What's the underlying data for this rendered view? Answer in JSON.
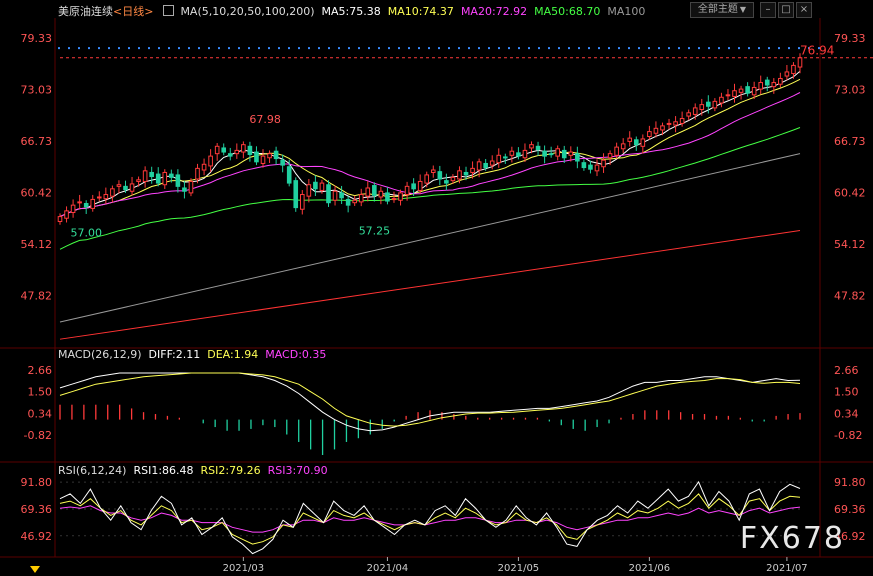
{
  "header": {
    "title": "美原油连续",
    "period": "<日线>",
    "ma_legend": [
      {
        "text": "MA(5,10,20,50,100,200)",
        "color": "#dddddd"
      },
      {
        "text": "MA5:75.38",
        "color": "#ffffff"
      },
      {
        "text": "MA10:74.37",
        "color": "#ffff55"
      },
      {
        "text": "MA20:72.92",
        "color": "#ff44ff"
      },
      {
        "text": "MA50:68.70",
        "color": "#44ff44"
      },
      {
        "text": "MA100",
        "color": "#999999"
      }
    ],
    "theme_button": "全部主题",
    "theme_caret": "▼"
  },
  "colors": {
    "up": "#ff3a3a",
    "down": "#20d0a0",
    "ma5": "#ffffff",
    "ma10": "#ffff55",
    "ma20": "#ff44ff",
    "ma50": "#44ff44",
    "ma100": "#999999",
    "ma200": "#ff3333",
    "grid": "#3a0000",
    "price_tag": "#ff3a3a"
  },
  "watermark": "FX678",
  "chart_data": [
    {
      "type": "candlestick",
      "title": "美原油连续",
      "y_ticks": [
        79.33,
        73.03,
        66.73,
        60.42,
        54.12,
        47.82
      ],
      "ylim": [
        42.4,
        81.8
      ],
      "x_ticks": [
        {
          "label": "2021/03",
          "index": 28
        },
        {
          "label": "2021/04",
          "index": 50
        },
        {
          "label": "2021/05",
          "index": 70
        },
        {
          "label": "2021/06",
          "index": 90
        },
        {
          "label": "2021/07",
          "index": 111
        }
      ],
      "last_price": 76.94,
      "annotations": [
        {
          "text": "67.98",
          "index": 28,
          "value": 67.98,
          "kind": "high"
        },
        {
          "text": "57.00",
          "index": 1,
          "value": 57.0,
          "kind": "low"
        },
        {
          "text": "57.25",
          "index": 45,
          "value": 57.25,
          "kind": "low"
        }
      ],
      "closes": [
        57.5,
        58.2,
        58.9,
        59.3,
        58.7,
        59.6,
        59.9,
        60.2,
        60.9,
        61.4,
        60.8,
        61.5,
        62.0,
        63.1,
        62.4,
        61.6,
        62.9,
        62.3,
        61.2,
        60.6,
        61.8,
        63.4,
        63.9,
        64.9,
        66.1,
        65.4,
        64.9,
        65.6,
        66.3,
        65.1,
        64.2,
        64.9,
        65.2,
        64.6,
        63.8,
        61.6,
        58.6,
        60.2,
        61.4,
        60.9,
        61.6,
        59.2,
        60.6,
        59.8,
        58.9,
        59.5,
        60.2,
        61.0,
        60.1,
        60.6,
        59.4,
        59.7,
        60.4,
        61.2,
        60.9,
        61.8,
        62.6,
        63.2,
        62.1,
        61.6,
        62.3,
        63.1,
        62.6,
        63.4,
        64.2,
        63.5,
        64.3,
        65.0,
        64.7,
        65.5,
        64.9,
        65.6,
        66.3,
        65.7,
        64.9,
        65.1,
        65.8,
        64.7,
        65.4,
        64.3,
        63.5,
        63.3,
        63.8,
        64.4,
        65.2,
        66.0,
        66.4,
        67.1,
        66.3,
        67.0,
        67.9,
        68.3,
        68.6,
        68.9,
        69.1,
        69.5,
        70.2,
        70.8,
        71.2,
        71.0,
        71.6,
        72.1,
        72.4,
        72.9,
        73.1,
        72.6,
        73.3,
        73.9,
        73.6,
        73.9,
        74.4,
        75.2,
        76.0,
        76.94
      ],
      "series": [
        {
          "name": "MA5",
          "color": "#ffffff",
          "last": 75.38
        },
        {
          "name": "MA10",
          "color": "#ffff55",
          "last": 74.37
        },
        {
          "name": "MA20",
          "color": "#ff44ff",
          "last": 72.92
        },
        {
          "name": "MA50",
          "color": "#44ff44",
          "last": 68.7
        },
        {
          "name": "MA100",
          "color": "#999999",
          "start": 44.6,
          "end": 65.2
        },
        {
          "name": "MA200",
          "color": "#ff3333",
          "start": 42.5,
          "end": 55.8
        }
      ]
    },
    {
      "type": "line+bar",
      "title": "MACD(26,12,9)",
      "legend": [
        {
          "text": "MACD(26,12,9)",
          "color": "#dddddd"
        },
        {
          "text": "DIFF:2.11",
          "color": "#ffffff"
        },
        {
          "text": "DEA:1.94",
          "color": "#ffff55"
        },
        {
          "text": "MACD:0.35",
          "color": "#ff44ff"
        }
      ],
      "y_ticks": [
        2.66,
        1.5,
        0.34,
        -0.82
      ],
      "ylim": [
        -1.9,
        3.2
      ],
      "diff": [
        1.7,
        1.9,
        2.1,
        2.3,
        2.4,
        2.5,
        2.5,
        2.5,
        2.5,
        2.5,
        2.5,
        2.5,
        2.5,
        2.5,
        2.5,
        2.5,
        2.4,
        2.3,
        2.1,
        1.8,
        1.4,
        0.9,
        0.4,
        0.0,
        -0.3,
        -0.5,
        -0.6,
        -0.55,
        -0.4,
        -0.2,
        0.0,
        0.2,
        0.3,
        0.4,
        0.4,
        0.4,
        0.4,
        0.45,
        0.5,
        0.55,
        0.6,
        0.6,
        0.7,
        0.8,
        0.9,
        1.0,
        1.2,
        1.5,
        1.8,
        2.0,
        2.0,
        2.1,
        2.1,
        2.2,
        2.3,
        2.3,
        2.2,
        2.1,
        2.0,
        2.1,
        2.2,
        2.1,
        2.11
      ],
      "dea": [
        1.3,
        1.5,
        1.7,
        1.9,
        2.0,
        2.1,
        2.2,
        2.3,
        2.35,
        2.4,
        2.45,
        2.5,
        2.5,
        2.5,
        2.5,
        2.5,
        2.45,
        2.4,
        2.3,
        2.1,
        1.9,
        1.5,
        1.1,
        0.6,
        0.2,
        0.0,
        -0.2,
        -0.3,
        -0.35,
        -0.3,
        -0.2,
        -0.05,
        0.1,
        0.2,
        0.3,
        0.35,
        0.35,
        0.38,
        0.4,
        0.45,
        0.5,
        0.55,
        0.6,
        0.7,
        0.8,
        0.9,
        1.0,
        1.2,
        1.4,
        1.6,
        1.8,
        1.9,
        2.0,
        2.05,
        2.1,
        2.2,
        2.2,
        2.15,
        2.0,
        1.95,
        2.0,
        2.0,
        1.94
      ],
      "macd": [
        0.8,
        0.8,
        0.8,
        0.8,
        0.8,
        0.8,
        0.6,
        0.4,
        0.3,
        0.2,
        0.1,
        0.0,
        -0.2,
        -0.4,
        -0.6,
        -0.6,
        -0.5,
        -0.3,
        -0.4,
        -0.8,
        -1.2,
        -1.6,
        -1.9,
        -1.6,
        -1.2,
        -1.0,
        -0.8,
        -0.5,
        -0.1,
        0.2,
        0.4,
        0.5,
        0.4,
        0.3,
        0.2,
        0.1,
        0.1,
        0.1,
        0.1,
        0.1,
        0.1,
        -0.1,
        -0.3,
        -0.5,
        -0.6,
        -0.4,
        -0.2,
        0.1,
        0.3,
        0.5,
        0.5,
        0.5,
        0.4,
        0.3,
        0.3,
        0.2,
        0.2,
        0.1,
        -0.1,
        -0.1,
        0.2,
        0.3,
        0.35
      ]
    },
    {
      "type": "line",
      "title": "RSI(6,12,24)",
      "legend": [
        {
          "text": "RSI(6,12,24)",
          "color": "#dddddd"
        },
        {
          "text": "RSI1:86.48",
          "color": "#ffffff"
        },
        {
          "text": "RSI2:79.26",
          "color": "#ffff55"
        },
        {
          "text": "RSI3:70.90",
          "color": "#ff44ff"
        }
      ],
      "y_ticks": [
        91.8,
        69.36,
        46.92
      ],
      "ylim": [
        30,
        102
      ],
      "rsi1": [
        78,
        82,
        74,
        86,
        70,
        60,
        72,
        58,
        52,
        68,
        80,
        74,
        56,
        62,
        48,
        54,
        62,
        46,
        40,
        32,
        36,
        44,
        60,
        54,
        74,
        66,
        58,
        76,
        68,
        64,
        72,
        60,
        54,
        48,
        56,
        60,
        56,
        68,
        72,
        64,
        78,
        70,
        60,
        54,
        60,
        72,
        62,
        56,
        66,
        54,
        40,
        38,
        52,
        60,
        64,
        72,
        66,
        76,
        70,
        78,
        86,
        76,
        80,
        92,
        72,
        84,
        76,
        60,
        82,
        86,
        68,
        84,
        90,
        86.48
      ],
      "rsi2": [
        74,
        76,
        72,
        78,
        70,
        64,
        68,
        60,
        56,
        64,
        72,
        68,
        58,
        60,
        52,
        54,
        58,
        48,
        44,
        40,
        42,
        46,
        56,
        54,
        66,
        62,
        58,
        68,
        64,
        62,
        66,
        60,
        56,
        52,
        56,
        58,
        56,
        62,
        66,
        62,
        70,
        66,
        60,
        56,
        58,
        66,
        60,
        58,
        62,
        56,
        46,
        44,
        52,
        56,
        60,
        66,
        62,
        68,
        66,
        70,
        76,
        70,
        74,
        82,
        70,
        78,
        72,
        64,
        76,
        78,
        68,
        76,
        80,
        79.26
      ],
      "rsi3": [
        70,
        71,
        70,
        72,
        68,
        66,
        66,
        62,
        60,
        62,
        66,
        64,
        60,
        60,
        58,
        58,
        58,
        54,
        52,
        50,
        50,
        52,
        56,
        56,
        60,
        60,
        58,
        62,
        60,
        60,
        62,
        60,
        58,
        56,
        56,
        58,
        56,
        58,
        60,
        60,
        62,
        62,
        60,
        58,
        58,
        60,
        60,
        58,
        60,
        58,
        54,
        52,
        54,
        56,
        58,
        60,
        60,
        62,
        62,
        64,
        66,
        64,
        66,
        70,
        66,
        68,
        66,
        64,
        68,
        70,
        66,
        68,
        70,
        70.9
      ]
    }
  ]
}
